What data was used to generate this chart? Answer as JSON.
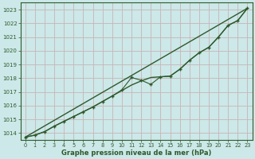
{
  "xlabel": "Graphe pression niveau de la mer (hPa)",
  "bg_color": "#cce8e8",
  "grid_color": "#c8b4b8",
  "line_color": "#2d5a2d",
  "xlim": [
    -0.5,
    23.5
  ],
  "ylim": [
    1013.5,
    1023.5
  ],
  "yticks": [
    1014,
    1015,
    1016,
    1017,
    1018,
    1019,
    1020,
    1021,
    1022,
    1023
  ],
  "xticks": [
    0,
    1,
    2,
    3,
    4,
    5,
    6,
    7,
    8,
    9,
    10,
    11,
    12,
    13,
    14,
    15,
    16,
    17,
    18,
    19,
    20,
    21,
    22,
    23
  ],
  "line1": [
    [
      0,
      1013.7
    ],
    [
      1,
      1013.85
    ],
    [
      2,
      1014.1
    ],
    [
      3,
      1014.5
    ],
    [
      4,
      1014.85
    ],
    [
      5,
      1015.2
    ],
    [
      6,
      1015.55
    ],
    [
      7,
      1015.9
    ],
    [
      8,
      1016.3
    ],
    [
      9,
      1016.7
    ],
    [
      10,
      1017.1
    ],
    [
      11,
      1017.5
    ],
    [
      12,
      1017.8
    ],
    [
      13,
      1018.05
    ],
    [
      14,
      1018.1
    ],
    [
      15,
      1018.15
    ],
    [
      16,
      1018.65
    ],
    [
      17,
      1019.3
    ],
    [
      18,
      1019.85
    ],
    [
      19,
      1020.25
    ],
    [
      20,
      1021.0
    ],
    [
      21,
      1021.85
    ],
    [
      22,
      1022.2
    ],
    [
      23,
      1023.1
    ]
  ],
  "line2": [
    [
      0,
      1013.7
    ],
    [
      1,
      1013.85
    ],
    [
      2,
      1014.1
    ],
    [
      3,
      1014.5
    ],
    [
      4,
      1014.85
    ],
    [
      5,
      1015.2
    ],
    [
      6,
      1015.55
    ],
    [
      7,
      1015.9
    ],
    [
      8,
      1016.3
    ],
    [
      9,
      1016.7
    ],
    [
      10,
      1017.15
    ],
    [
      11,
      1018.05
    ],
    [
      12,
      1017.85
    ],
    [
      13,
      1017.55
    ],
    [
      14,
      1018.1
    ],
    [
      15,
      1018.15
    ],
    [
      16,
      1018.65
    ],
    [
      17,
      1019.3
    ],
    [
      18,
      1019.85
    ],
    [
      19,
      1020.25
    ],
    [
      20,
      1021.0
    ],
    [
      21,
      1021.85
    ],
    [
      22,
      1022.2
    ],
    [
      23,
      1023.1
    ]
  ],
  "line3": [
    [
      0,
      1013.7
    ],
    [
      1,
      1013.85
    ],
    [
      2,
      1014.1
    ],
    [
      3,
      1014.5
    ],
    [
      4,
      1014.85
    ],
    [
      5,
      1015.2
    ],
    [
      6,
      1015.55
    ],
    [
      7,
      1015.9
    ],
    [
      8,
      1016.3
    ],
    [
      9,
      1016.7
    ],
    [
      10,
      1017.15
    ],
    [
      11,
      1018.05
    ],
    [
      12,
      1017.85
    ],
    [
      13,
      1017.55
    ],
    [
      14,
      1018.1
    ],
    [
      15,
      1018.15
    ],
    [
      16,
      1018.65
    ],
    [
      17,
      1019.3
    ],
    [
      18,
      1019.85
    ],
    [
      19,
      1020.25
    ],
    [
      20,
      1021.0
    ],
    [
      21,
      1021.85
    ],
    [
      22,
      1022.2
    ],
    [
      23,
      1023.1
    ]
  ]
}
